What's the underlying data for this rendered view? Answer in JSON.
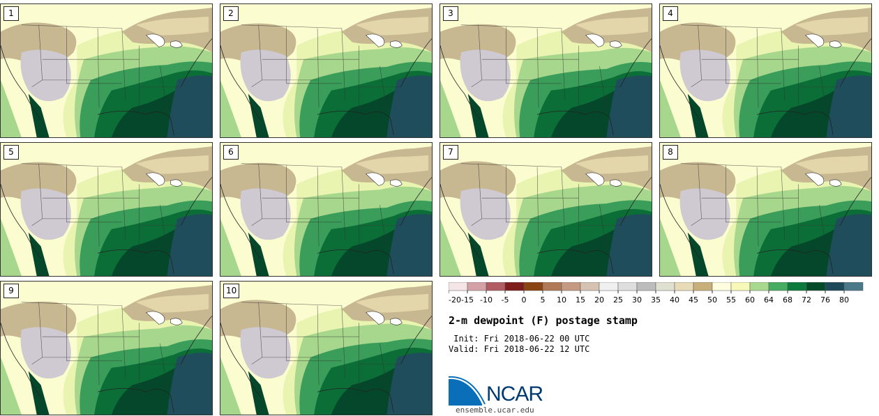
{
  "panels": [
    {
      "label": "1"
    },
    {
      "label": "2"
    },
    {
      "label": "3"
    },
    {
      "label": "4"
    },
    {
      "label": "5"
    },
    {
      "label": "6"
    },
    {
      "label": "7"
    },
    {
      "label": "8"
    },
    {
      "label": "9"
    },
    {
      "label": "10"
    }
  ],
  "colorbar": {
    "ticks": [
      "-20",
      "-15",
      "-10",
      "-5",
      "0",
      "5",
      "10",
      "15",
      "20",
      "25",
      "30",
      "35",
      "40",
      "45",
      "50",
      "55",
      "60",
      "64",
      "68",
      "72",
      "76",
      "80"
    ],
    "colors": [
      "#f4e6e6",
      "#d4a2a6",
      "#b05c62",
      "#7f1c1c",
      "#8b4513",
      "#b07a58",
      "#c49a82",
      "#d6c2b2",
      "#f0f0f0",
      "#dedede",
      "#bcbcbc",
      "#e0e0d0",
      "#e8dcb8",
      "#c8b07a",
      "#fffde0",
      "#f6f9b8",
      "#a9d98e",
      "#45ac61",
      "#0c7a3c",
      "#044b2a",
      "#1e4a5a",
      "#4a7a88"
    ]
  },
  "title": "2-m dewpoint (F) postage stamp",
  "init": " Init: Fri 2018-06-22 00 UTC",
  "valid": "Valid: Fri 2018-06-22 12 UTC",
  "logo": {
    "name": "NCAR",
    "site": "ensemble.ucar.edu"
  },
  "map_colors": {
    "very_dry": "#cfc9d2",
    "dry": "#c8b891",
    "dry_light": "#e3d6aa",
    "low": "#fbfdd0",
    "mid": "#e9f4b0",
    "moist": "#a7d78c",
    "humid": "#3a9e5a",
    "very_humid": "#0b6e37",
    "tropical": "#05472a",
    "ocean": "#1f4d5c"
  }
}
